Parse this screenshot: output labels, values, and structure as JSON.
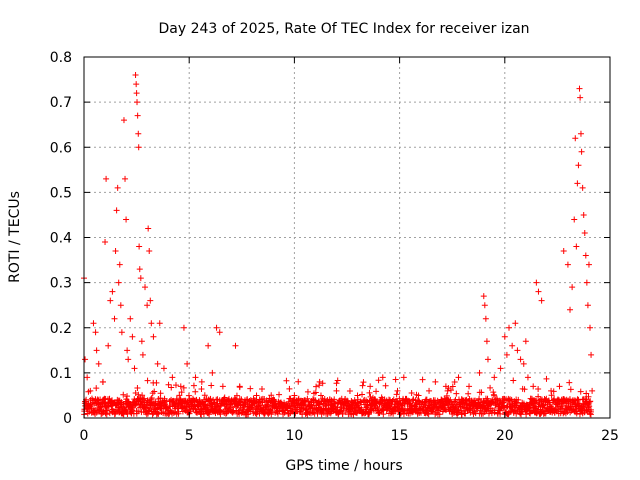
{
  "chart_data": {
    "type": "scatter",
    "title": "Day 243 of 2025, Rate Of TEC Index for receiver izan",
    "xlabel": "GPS time / hours",
    "ylabel": "ROTI / TECUs",
    "xlim": [
      0,
      25
    ],
    "ylim": [
      0,
      0.8
    ],
    "xticks": [
      "0",
      "5",
      "10",
      "15",
      "20",
      "25"
    ],
    "yticks": [
      "0",
      "0.1",
      "0.2",
      "0.3",
      "0.4",
      "0.5",
      "0.6",
      "0.7",
      "0.8"
    ],
    "grid": true,
    "marker": "+",
    "color": "#ff0000",
    "series": [
      {
        "points": [
          [
            0.0,
            0.31
          ],
          [
            0.05,
            0.13
          ],
          [
            0.15,
            0.09
          ],
          [
            0.3,
            0.06
          ],
          [
            0.45,
            0.21
          ],
          [
            0.55,
            0.19
          ],
          [
            0.6,
            0.15
          ],
          [
            0.7,
            0.12
          ],
          [
            0.9,
            0.08
          ],
          [
            1.0,
            0.39
          ],
          [
            1.05,
            0.53
          ],
          [
            1.15,
            0.16
          ],
          [
            1.25,
            0.26
          ],
          [
            1.35,
            0.28
          ],
          [
            1.45,
            0.22
          ],
          [
            1.5,
            0.37
          ],
          [
            1.55,
            0.46
          ],
          [
            1.6,
            0.51
          ],
          [
            1.65,
            0.3
          ],
          [
            1.7,
            0.34
          ],
          [
            1.75,
            0.25
          ],
          [
            1.8,
            0.19
          ],
          [
            1.9,
            0.66
          ],
          [
            1.95,
            0.53
          ],
          [
            2.0,
            0.44
          ],
          [
            2.05,
            0.15
          ],
          [
            2.1,
            0.13
          ],
          [
            2.2,
            0.22
          ],
          [
            2.3,
            0.18
          ],
          [
            2.4,
            0.11
          ],
          [
            2.45,
            0.76
          ],
          [
            2.48,
            0.74
          ],
          [
            2.5,
            0.72
          ],
          [
            2.52,
            0.7
          ],
          [
            2.55,
            0.67
          ],
          [
            2.58,
            0.63
          ],
          [
            2.6,
            0.6
          ],
          [
            2.62,
            0.38
          ],
          [
            2.65,
            0.33
          ],
          [
            2.7,
            0.31
          ],
          [
            2.75,
            0.17
          ],
          [
            2.8,
            0.14
          ],
          [
            2.9,
            0.29
          ],
          [
            3.0,
            0.25
          ],
          [
            3.05,
            0.42
          ],
          [
            3.1,
            0.37
          ],
          [
            3.15,
            0.26
          ],
          [
            3.2,
            0.21
          ],
          [
            3.3,
            0.18
          ],
          [
            3.5,
            0.12
          ],
          [
            3.6,
            0.21
          ],
          [
            3.8,
            0.11
          ],
          [
            4.2,
            0.09
          ],
          [
            4.6,
            0.07
          ],
          [
            4.75,
            0.2
          ],
          [
            4.9,
            0.12
          ],
          [
            5.3,
            0.09
          ],
          [
            5.6,
            0.08
          ],
          [
            5.9,
            0.16
          ],
          [
            6.1,
            0.1
          ],
          [
            6.3,
            0.2
          ],
          [
            6.45,
            0.19
          ],
          [
            6.6,
            0.07
          ],
          [
            7.2,
            0.16
          ],
          [
            7.4,
            0.07
          ],
          [
            8.2,
            0.05
          ],
          [
            9.0,
            0.04
          ],
          [
            10.0,
            0.05
          ],
          [
            10.5,
            0.04
          ],
          [
            11.2,
            0.08
          ],
          [
            12.0,
            0.06
          ],
          [
            13.0,
            0.05
          ],
          [
            13.6,
            0.07
          ],
          [
            14.2,
            0.09
          ],
          [
            14.9,
            0.06
          ],
          [
            15.2,
            0.09
          ],
          [
            15.9,
            0.05
          ],
          [
            16.4,
            0.06
          ],
          [
            16.7,
            0.08
          ],
          [
            17.2,
            0.07
          ],
          [
            17.8,
            0.09
          ],
          [
            18.3,
            0.07
          ],
          [
            18.8,
            0.1
          ],
          [
            19.0,
            0.27
          ],
          [
            19.05,
            0.25
          ],
          [
            19.1,
            0.22
          ],
          [
            19.15,
            0.17
          ],
          [
            19.2,
            0.13
          ],
          [
            19.5,
            0.09
          ],
          [
            19.8,
            0.11
          ],
          [
            20.0,
            0.18
          ],
          [
            20.1,
            0.14
          ],
          [
            20.2,
            0.2
          ],
          [
            20.35,
            0.16
          ],
          [
            20.5,
            0.21
          ],
          [
            20.6,
            0.15
          ],
          [
            20.75,
            0.13
          ],
          [
            20.9,
            0.12
          ],
          [
            21.0,
            0.17
          ],
          [
            21.1,
            0.09
          ],
          [
            21.35,
            0.07
          ],
          [
            21.5,
            0.3
          ],
          [
            21.6,
            0.28
          ],
          [
            21.75,
            0.26
          ],
          [
            22.2,
            0.06
          ],
          [
            22.6,
            0.07
          ],
          [
            22.8,
            0.37
          ],
          [
            23.0,
            0.34
          ],
          [
            23.1,
            0.24
          ],
          [
            23.2,
            0.29
          ],
          [
            23.3,
            0.44
          ],
          [
            23.35,
            0.62
          ],
          [
            23.4,
            0.38
          ],
          [
            23.45,
            0.52
          ],
          [
            23.5,
            0.56
          ],
          [
            23.55,
            0.73
          ],
          [
            23.58,
            0.71
          ],
          [
            23.62,
            0.63
          ],
          [
            23.65,
            0.59
          ],
          [
            23.7,
            0.51
          ],
          [
            23.75,
            0.45
          ],
          [
            23.8,
            0.41
          ],
          [
            23.85,
            0.36
          ],
          [
            23.9,
            0.3
          ],
          [
            23.95,
            0.25
          ],
          [
            24.0,
            0.34
          ],
          [
            24.05,
            0.2
          ],
          [
            24.1,
            0.14
          ],
          [
            24.15,
            0.06
          ]
        ]
      }
    ]
  }
}
